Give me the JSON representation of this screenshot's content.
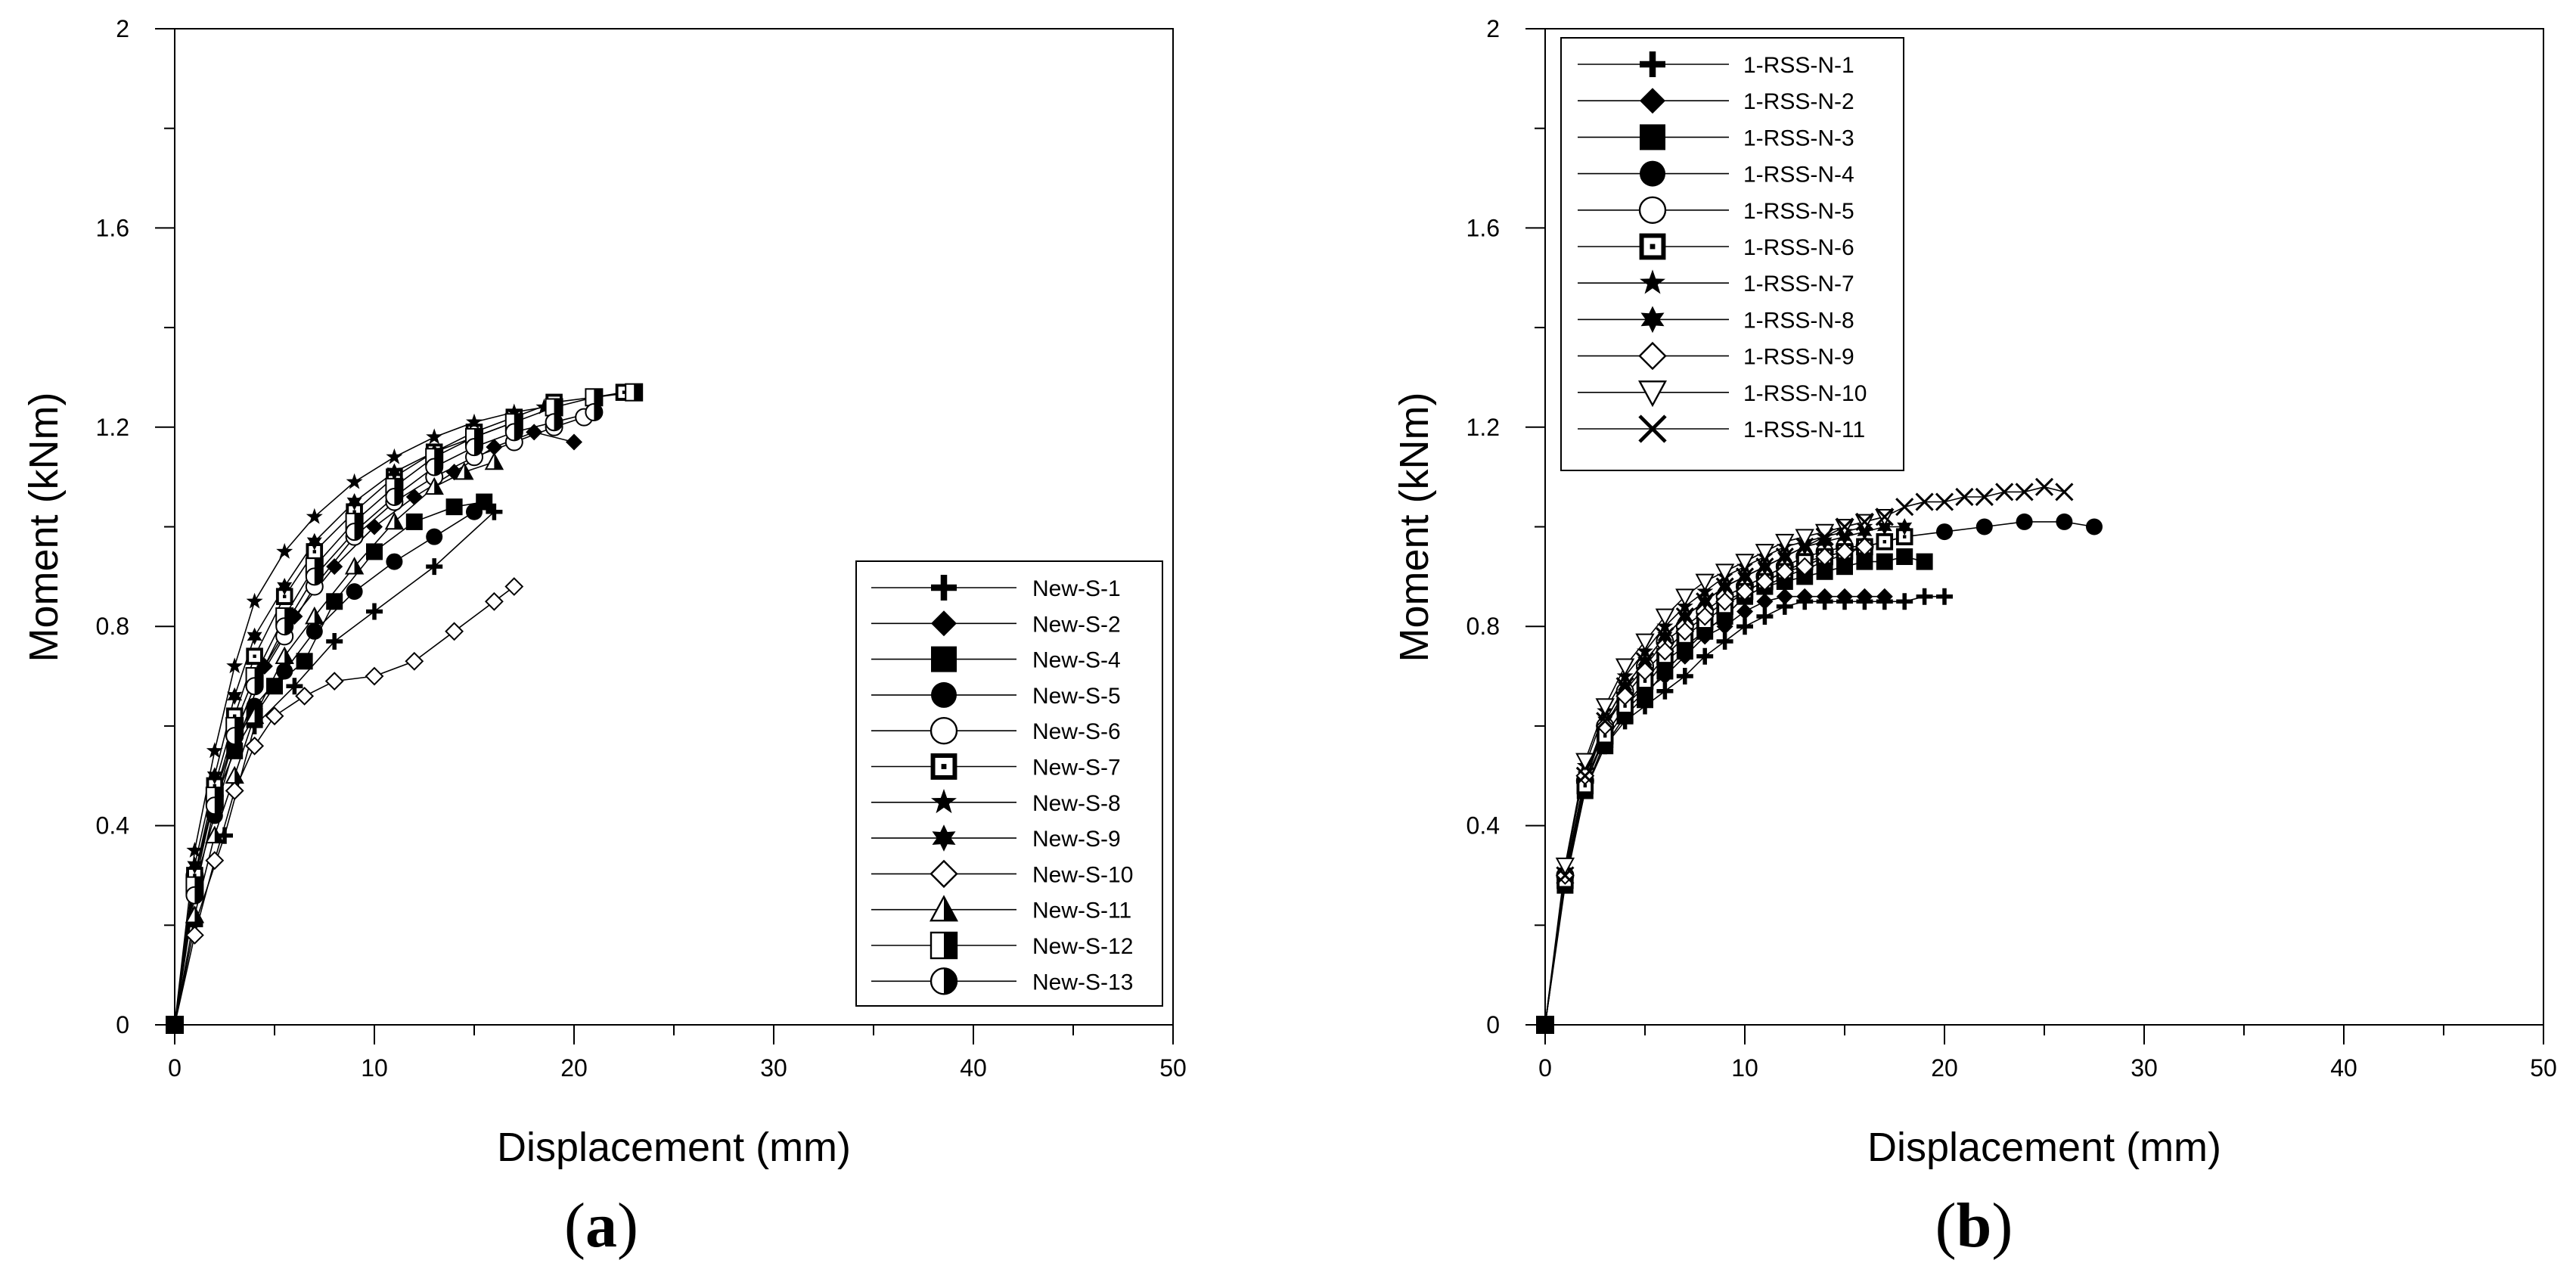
{
  "figure": {
    "panels": [
      {
        "caption_letter": "a"
      },
      {
        "caption_letter": "b"
      }
    ]
  },
  "chart_data": [
    {
      "type": "line",
      "panel": "a",
      "xlabel": "Displacement (mm)",
      "ylabel": "Moment (kNm)",
      "xlim": [
        0,
        50
      ],
      "ylim": [
        0,
        2
      ],
      "xticks": [
        0,
        10,
        20,
        30,
        40,
        50
      ],
      "yticks": [
        0,
        0.4,
        0.8,
        1.2,
        1.6,
        2
      ],
      "ytick_labels": [
        "0",
        "0.4",
        "0.8",
        "1.2",
        "1.6",
        "2"
      ],
      "legend_position": "lower-right",
      "series": [
        {
          "name": "New-S-1",
          "marker": "cross-bold",
          "x": [
            0,
            1,
            2.5,
            4,
            6,
            8,
            10,
            13,
            16
          ],
          "y": [
            0,
            0.2,
            0.38,
            0.6,
            0.68,
            0.77,
            0.83,
            0.92,
            1.03
          ]
        },
        {
          "name": "New-S-2",
          "marker": "diamond-filled",
          "x": [
            0,
            1,
            2,
            3,
            4.5,
            6,
            8,
            10,
            12,
            14,
            16,
            18,
            20
          ],
          "y": [
            0,
            0.3,
            0.45,
            0.55,
            0.72,
            0.82,
            0.92,
            1.0,
            1.06,
            1.11,
            1.16,
            1.19,
            1.17
          ]
        },
        {
          "name": "New-S-4",
          "marker": "square-filled",
          "x": [
            0,
            1,
            2,
            3,
            4,
            5,
            6.5,
            8,
            10,
            12,
            14,
            15.5
          ],
          "y": [
            0,
            0.3,
            0.45,
            0.55,
            0.62,
            0.68,
            0.73,
            0.85,
            0.95,
            1.01,
            1.04,
            1.05
          ]
        },
        {
          "name": "New-S-5",
          "marker": "circle-filled",
          "x": [
            0,
            1,
            2,
            3,
            4,
            5.5,
            7,
            9,
            11,
            13,
            15
          ],
          "y": [
            0,
            0.28,
            0.42,
            0.56,
            0.64,
            0.71,
            0.79,
            0.87,
            0.93,
            0.98,
            1.03
          ]
        },
        {
          "name": "New-S-6",
          "marker": "circle-open",
          "x": [
            0,
            1,
            2,
            3,
            4,
            5.5,
            7,
            9,
            11,
            13,
            15,
            17,
            19,
            20.5
          ],
          "y": [
            0,
            0.3,
            0.46,
            0.58,
            0.68,
            0.78,
            0.88,
            0.98,
            1.05,
            1.1,
            1.14,
            1.17,
            1.2,
            1.22
          ]
        },
        {
          "name": "New-S-7",
          "marker": "square-dot",
          "x": [
            0,
            1,
            2,
            3,
            4,
            5.5,
            7,
            9,
            11,
            13,
            15,
            17,
            19,
            21,
            22.5
          ],
          "y": [
            0,
            0.3,
            0.48,
            0.62,
            0.74,
            0.86,
            0.95,
            1.03,
            1.1,
            1.15,
            1.19,
            1.22,
            1.25,
            1.26,
            1.27
          ]
        },
        {
          "name": "New-S-8",
          "marker": "star-5",
          "x": [
            0,
            1,
            2,
            3,
            4,
            5.5,
            7,
            9,
            11,
            13,
            15,
            17,
            18.5
          ],
          "y": [
            0,
            0.35,
            0.55,
            0.72,
            0.85,
            0.95,
            1.02,
            1.09,
            1.14,
            1.18,
            1.21,
            1.23,
            1.24
          ]
        },
        {
          "name": "New-S-9",
          "marker": "star-6",
          "x": [
            0,
            1,
            2,
            3,
            4,
            5.5,
            7,
            9,
            11,
            13,
            15,
            17
          ],
          "y": [
            0,
            0.32,
            0.5,
            0.66,
            0.78,
            0.88,
            0.97,
            1.05,
            1.11,
            1.15,
            1.18,
            1.21
          ]
        },
        {
          "name": "New-S-10",
          "marker": "diamond-open",
          "x": [
            0,
            1,
            2,
            3,
            4,
            5,
            6.5,
            8,
            10,
            12,
            14,
            16,
            17
          ],
          "y": [
            0,
            0.18,
            0.33,
            0.47,
            0.56,
            0.62,
            0.66,
            0.69,
            0.7,
            0.73,
            0.79,
            0.85,
            0.88
          ]
        },
        {
          "name": "New-S-11",
          "marker": "triangle-half",
          "x": [
            0,
            1,
            2,
            3,
            4,
            5.5,
            7,
            9,
            11,
            13,
            14.5,
            16
          ],
          "y": [
            0,
            0.22,
            0.38,
            0.5,
            0.62,
            0.74,
            0.82,
            0.92,
            1.01,
            1.08,
            1.11,
            1.13
          ]
        },
        {
          "name": "New-S-12",
          "marker": "square-half",
          "x": [
            0,
            1,
            2,
            3,
            4,
            5.5,
            7,
            9,
            11,
            13,
            15,
            17,
            19,
            21,
            23
          ],
          "y": [
            0,
            0.28,
            0.46,
            0.6,
            0.7,
            0.82,
            0.92,
            1.01,
            1.08,
            1.14,
            1.18,
            1.21,
            1.24,
            1.26,
            1.27
          ]
        },
        {
          "name": "New-S-13",
          "marker": "circle-half",
          "x": [
            0,
            1,
            2,
            3,
            4,
            5.5,
            7,
            9,
            11,
            13,
            15,
            17,
            19,
            21
          ],
          "y": [
            0,
            0.26,
            0.44,
            0.58,
            0.68,
            0.8,
            0.9,
            0.99,
            1.06,
            1.12,
            1.16,
            1.19,
            1.21,
            1.23
          ]
        }
      ]
    },
    {
      "type": "line",
      "panel": "b",
      "xlabel": "Displacement (mm)",
      "ylabel": "Moment (kNm)",
      "xlim": [
        0,
        50
      ],
      "ylim": [
        0,
        2
      ],
      "xticks": [
        0,
        10,
        20,
        30,
        40,
        50
      ],
      "yticks": [
        0,
        0.4,
        0.8,
        1.2,
        1.6,
        2
      ],
      "ytick_labels": [
        "0",
        "0.4",
        "0.8",
        "1.2",
        "1.6",
        "2"
      ],
      "legend_position": "top-left",
      "series": [
        {
          "name": "1-RSS-N-1",
          "marker": "cross-bold",
          "x": [
            0,
            1,
            2,
            3,
            4,
            5,
            6,
            7,
            8,
            9,
            10,
            11,
            12,
            13,
            14,
            15,
            16,
            17,
            18,
            19,
            20
          ],
          "y": [
            0,
            0.29,
            0.47,
            0.56,
            0.61,
            0.64,
            0.67,
            0.7,
            0.74,
            0.77,
            0.8,
            0.82,
            0.84,
            0.85,
            0.85,
            0.85,
            0.85,
            0.85,
            0.85,
            0.86,
            0.86
          ]
        },
        {
          "name": "1-RSS-N-2",
          "marker": "diamond-filled",
          "x": [
            0,
            1,
            2,
            3,
            4,
            5,
            6,
            7,
            8,
            9,
            10,
            11,
            12,
            13,
            14,
            15,
            16,
            17
          ],
          "y": [
            0,
            0.29,
            0.47,
            0.57,
            0.63,
            0.67,
            0.7,
            0.74,
            0.78,
            0.8,
            0.83,
            0.85,
            0.86,
            0.86,
            0.86,
            0.86,
            0.86,
            0.86
          ]
        },
        {
          "name": "1-RSS-N-3",
          "marker": "square-filled",
          "x": [
            0,
            1,
            2,
            3,
            4,
            5,
            6,
            7,
            8,
            9,
            10,
            11,
            12,
            13,
            14,
            15,
            16,
            17,
            18,
            19
          ],
          "y": [
            0,
            0.28,
            0.47,
            0.56,
            0.62,
            0.66,
            0.71,
            0.75,
            0.79,
            0.82,
            0.86,
            0.88,
            0.89,
            0.9,
            0.91,
            0.92,
            0.93,
            0.93,
            0.94,
            0.93
          ]
        },
        {
          "name": "1-RSS-N-4",
          "marker": "circle-filled",
          "x": [
            0,
            1,
            2,
            3,
            4,
            5,
            6,
            7,
            8,
            9,
            10,
            11,
            12,
            14,
            16,
            18,
            20,
            22,
            24,
            26,
            27.5
          ],
          "y": [
            0,
            0.29,
            0.49,
            0.58,
            0.64,
            0.68,
            0.73,
            0.76,
            0.79,
            0.82,
            0.86,
            0.88,
            0.9,
            0.93,
            0.96,
            0.98,
            0.99,
            1.0,
            1.01,
            1.01,
            1.0
          ]
        },
        {
          "name": "1-RSS-N-5",
          "marker": "circle-open",
          "x": [
            0,
            1,
            2,
            3,
            4,
            5,
            6,
            7,
            8,
            9,
            10,
            11,
            12,
            13,
            14,
            15,
            16
          ],
          "y": [
            0,
            0.3,
            0.49,
            0.6,
            0.67,
            0.72,
            0.77,
            0.8,
            0.83,
            0.86,
            0.88,
            0.9,
            0.92,
            0.94,
            0.95,
            0.96,
            0.96
          ]
        },
        {
          "name": "1-RSS-N-6",
          "marker": "square-dot",
          "x": [
            0,
            1,
            2,
            3,
            4,
            5,
            6,
            7,
            8,
            9,
            10,
            11,
            12,
            13,
            14,
            15,
            16,
            17,
            18
          ],
          "y": [
            0,
            0.29,
            0.48,
            0.58,
            0.64,
            0.69,
            0.74,
            0.78,
            0.81,
            0.84,
            0.87,
            0.89,
            0.91,
            0.93,
            0.94,
            0.95,
            0.96,
            0.97,
            0.98
          ]
        },
        {
          "name": "1-RSS-N-7",
          "marker": "star-5",
          "x": [
            0,
            1,
            2,
            3,
            4,
            5,
            6,
            7,
            8,
            9,
            10,
            11,
            12,
            13,
            14,
            15,
            16
          ],
          "y": [
            0,
            0.31,
            0.52,
            0.63,
            0.7,
            0.75,
            0.8,
            0.84,
            0.87,
            0.9,
            0.92,
            0.94,
            0.96,
            0.97,
            0.98,
            0.99,
            1.0
          ]
        },
        {
          "name": "1-RSS-N-8",
          "marker": "star-6",
          "x": [
            0,
            1,
            2,
            3,
            4,
            5,
            6,
            7,
            8,
            9,
            10,
            11,
            12,
            13,
            14,
            15,
            16,
            17,
            18
          ],
          "y": [
            0,
            0.3,
            0.5,
            0.61,
            0.68,
            0.73,
            0.78,
            0.82,
            0.85,
            0.88,
            0.9,
            0.92,
            0.94,
            0.96,
            0.97,
            0.98,
            0.99,
            1.0,
            1.0
          ]
        },
        {
          "name": "1-RSS-N-9",
          "marker": "diamond-open",
          "x": [
            0,
            1,
            2,
            3,
            4,
            5,
            6,
            7,
            8,
            9,
            10,
            11,
            12,
            13,
            14,
            15,
            16
          ],
          "y": [
            0,
            0.3,
            0.5,
            0.6,
            0.66,
            0.71,
            0.75,
            0.79,
            0.82,
            0.85,
            0.87,
            0.89,
            0.91,
            0.92,
            0.94,
            0.95,
            0.96
          ]
        },
        {
          "name": "1-RSS-N-10",
          "marker": "triangle-down-open",
          "x": [
            0,
            1,
            2,
            3,
            4,
            5,
            6,
            7,
            8,
            9,
            10,
            11,
            12,
            13,
            14,
            15,
            16,
            17
          ],
          "y": [
            0,
            0.32,
            0.53,
            0.64,
            0.72,
            0.77,
            0.82,
            0.86,
            0.89,
            0.91,
            0.93,
            0.95,
            0.97,
            0.98,
            0.99,
            1.0,
            1.01,
            1.02
          ]
        },
        {
          "name": "1-RSS-N-11",
          "marker": "x-cross",
          "x": [
            0,
            1,
            2,
            3,
            4,
            5,
            6,
            7,
            8,
            9,
            10,
            11,
            12,
            13,
            14,
            15,
            16,
            17,
            18,
            19,
            20,
            21,
            22,
            23,
            24,
            25,
            26
          ],
          "y": [
            0,
            0.3,
            0.5,
            0.61,
            0.68,
            0.73,
            0.78,
            0.82,
            0.85,
            0.88,
            0.9,
            0.92,
            0.94,
            0.96,
            0.98,
            1.0,
            1.01,
            1.02,
            1.04,
            1.05,
            1.05,
            1.06,
            1.06,
            1.07,
            1.07,
            1.08,
            1.07
          ]
        }
      ]
    }
  ]
}
